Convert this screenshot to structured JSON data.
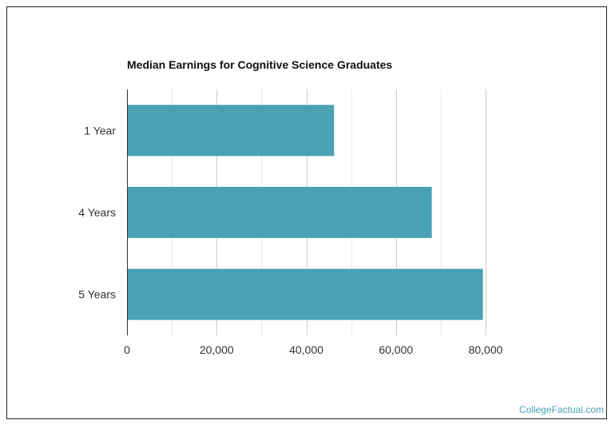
{
  "chart_data": {
    "type": "bar",
    "orientation": "horizontal",
    "title": "Median Earnings for Cognitive Science Graduates",
    "categories": [
      "1 Year",
      "4 Years",
      "5 Years"
    ],
    "values": [
      46200,
      68000,
      79400
    ],
    "xlabel": "",
    "ylabel": "",
    "xlim": [
      0,
      80000
    ],
    "x_ticks": [
      0,
      20000,
      40000,
      60000,
      80000
    ],
    "x_tick_labels": [
      "0",
      "20,000",
      "40,000",
      "60,000",
      "80,000"
    ],
    "grid": true,
    "legend": "none",
    "bar_color": "#4aa1b3"
  },
  "watermark": "CollegeFactual.com"
}
